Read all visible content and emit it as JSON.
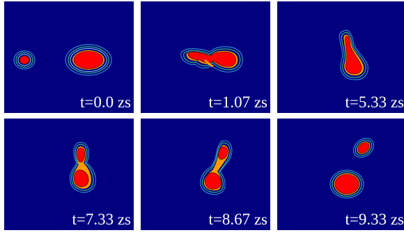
{
  "panels": [
    {
      "label": "t=0.0 zs"
    },
    {
      "label": "t=1.07 zs"
    },
    {
      "label": "t=5.33 zs"
    },
    {
      "label": "t=7.33 zs"
    },
    {
      "label": "t=8.67 zs"
    },
    {
      "label": "t=9.33 zs"
    }
  ],
  "colors": {
    "background": "#02007f",
    "core": "#ff0000",
    "neck": "#ff9900",
    "inner_contour": "#33b37f",
    "outer_contour": "#2a86c8",
    "separator": "#ffffff"
  }
}
